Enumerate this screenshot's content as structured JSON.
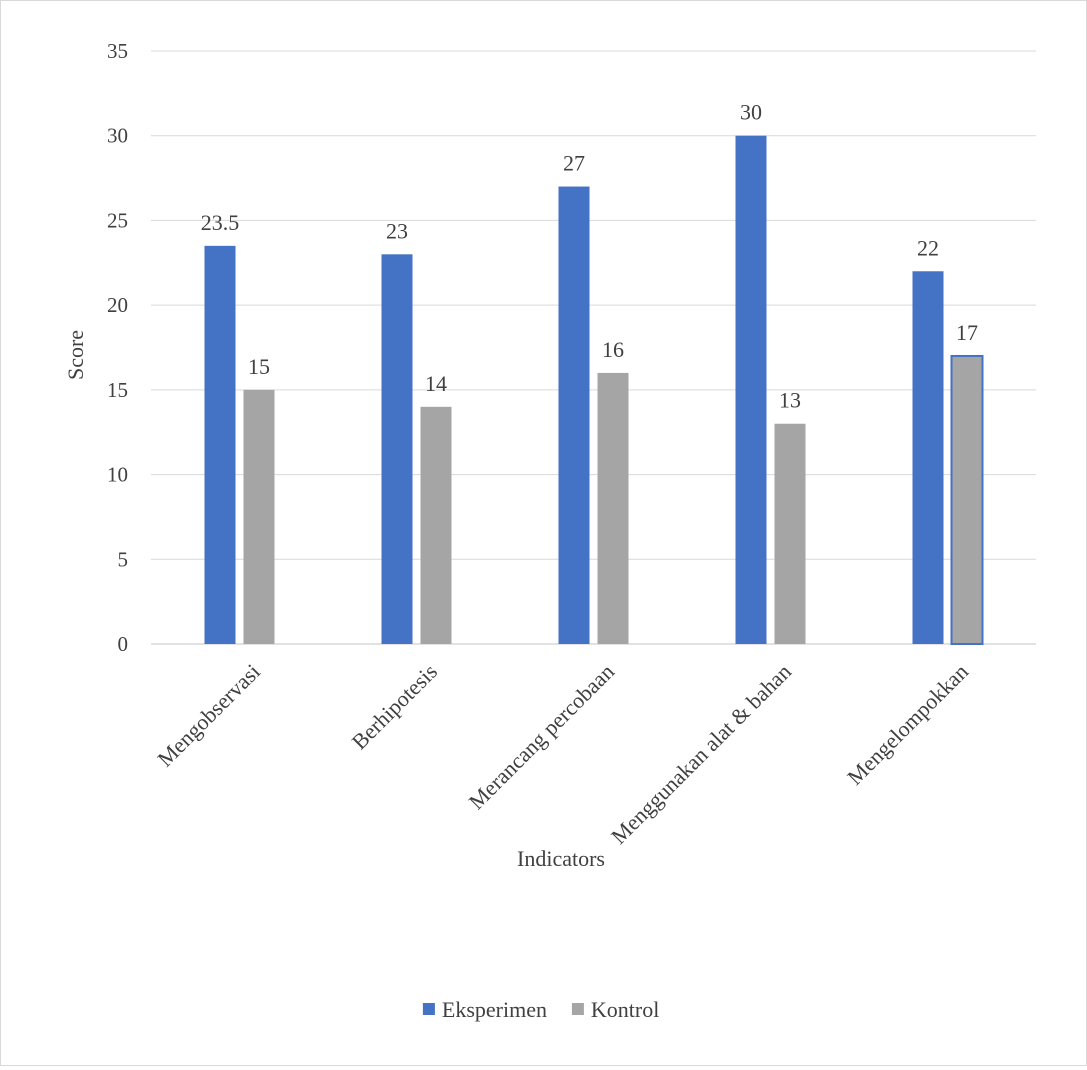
{
  "chart_data": {
    "type": "bar",
    "title": "",
    "xlabel": "Indicators",
    "ylabel": "Score",
    "ylim": [
      0,
      35
    ],
    "yticks": [
      "0",
      "5",
      "10",
      "15",
      "20",
      "25",
      "30",
      "35"
    ],
    "grid": true,
    "legend_position": "bottom",
    "categories": [
      "Mengobservasi",
      "Berhipotesis",
      "Merancang percobaan",
      "Menggunakan alat & bahan",
      "Mengelompokkan"
    ],
    "series": [
      {
        "name": "Eksperimen",
        "color": "#4472c4",
        "values": [
          23.5,
          23,
          27,
          30,
          22
        ],
        "labels": [
          "23.5",
          "23",
          "27",
          "30",
          "22"
        ]
      },
      {
        "name": "Kontrol",
        "color": "#a5a5a5",
        "values": [
          15,
          14,
          16,
          13,
          17
        ],
        "labels": [
          "15",
          "14",
          "16",
          "13",
          "17"
        ]
      }
    ]
  }
}
